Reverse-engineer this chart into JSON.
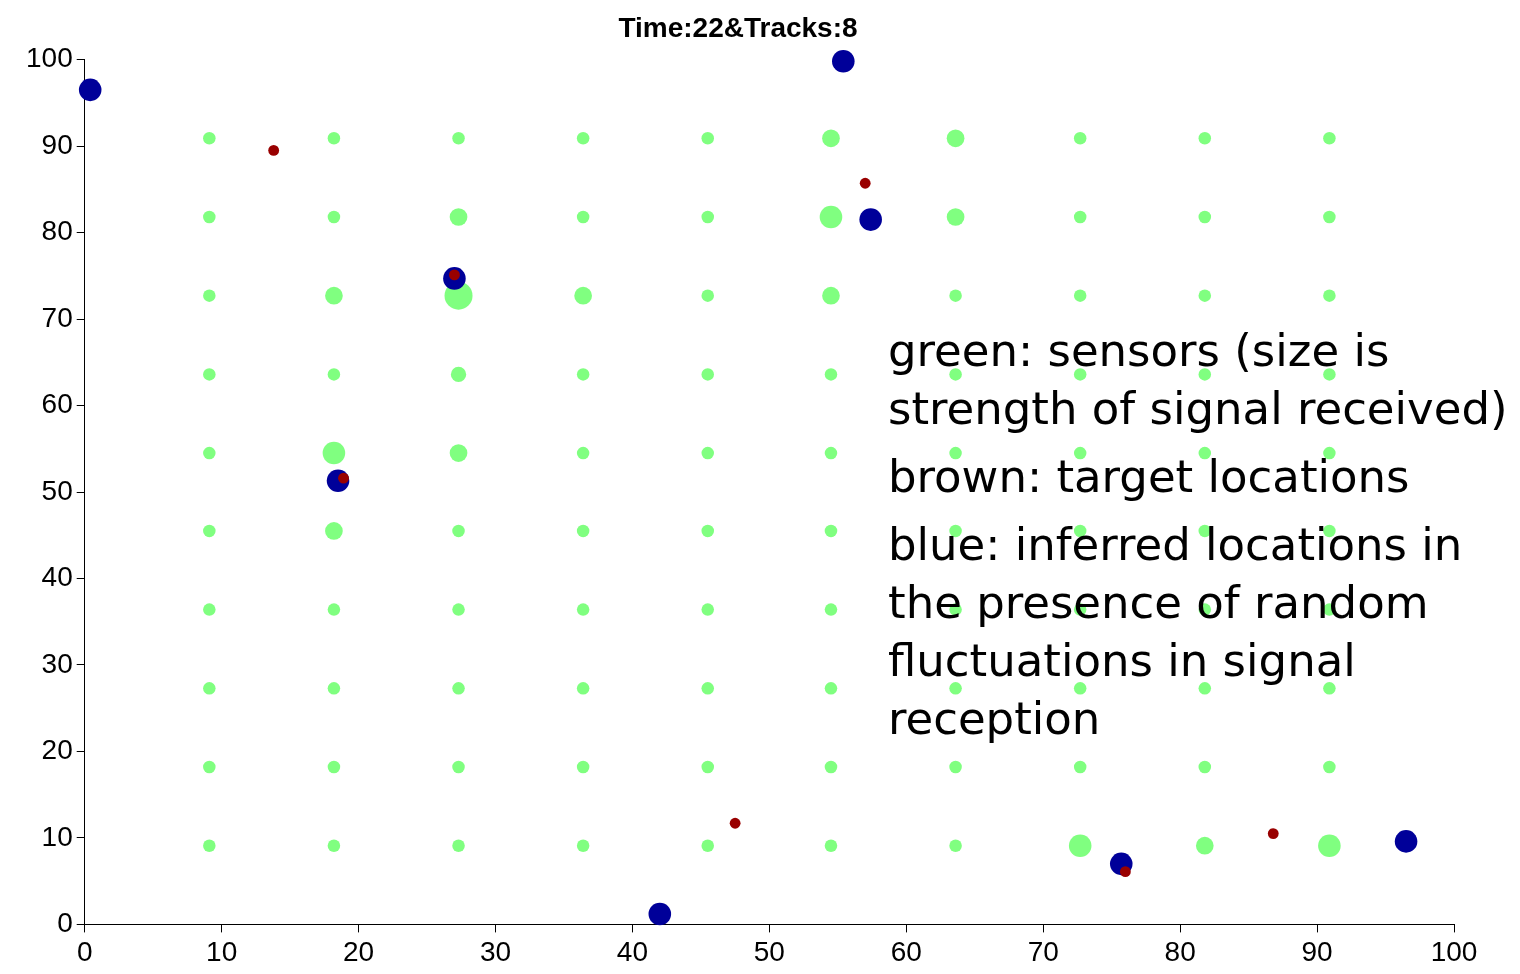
{
  "chart_data": {
    "type": "bubble",
    "title": "Time:22&Tracks:8",
    "series": [
      {
        "color": "#80ff80",
        "x": [
          9.1,
          18.2,
          27.3,
          36.4,
          45.5,
          54.5,
          63.6,
          72.7,
          81.8,
          90.9,
          9.1,
          18.2,
          27.3,
          36.4,
          45.5,
          54.5,
          63.6,
          72.7,
          81.8,
          90.9,
          9.1,
          18.2,
          27.3,
          36.4,
          45.5,
          54.5,
          63.6,
          72.7,
          81.8,
          90.9,
          9.1,
          18.2,
          27.3,
          36.4,
          45.5,
          54.5,
          63.6,
          72.7,
          81.8,
          90.9,
          9.1,
          18.2,
          27.3,
          36.4,
          45.5,
          54.5,
          63.6,
          72.7,
          81.8,
          90.9,
          9.1,
          18.2,
          27.3,
          36.4,
          45.5,
          54.5,
          63.6,
          72.7,
          81.8,
          90.9,
          9.1,
          18.2,
          27.3,
          36.4,
          45.5,
          54.5,
          63.6,
          72.7,
          81.8,
          90.9,
          9.1,
          18.2,
          27.3,
          36.4,
          45.5,
          54.5,
          63.6,
          72.7,
          81.8,
          90.9,
          9.1,
          18.2,
          27.3,
          36.4,
          45.5,
          54.5,
          63.6,
          72.7,
          81.8,
          90.9,
          9.1,
          18.2,
          27.3,
          36.4,
          45.5,
          54.5,
          63.6,
          72.7,
          81.8,
          90.9
        ],
        "values": [
          90.9,
          90.9,
          90.9,
          90.9,
          90.9,
          90.9,
          90.9,
          90.9,
          90.9,
          90.9,
          81.8,
          81.8,
          81.8,
          81.8,
          81.8,
          81.8,
          81.8,
          81.8,
          81.8,
          81.8,
          72.7,
          72.7,
          72.7,
          72.7,
          72.7,
          72.7,
          72.7,
          72.7,
          72.7,
          72.7,
          63.6,
          63.6,
          63.6,
          63.6,
          63.6,
          63.6,
          63.6,
          63.6,
          63.6,
          63.6,
          54.5,
          54.5,
          54.5,
          54.5,
          54.5,
          54.5,
          54.5,
          54.5,
          54.5,
          54.5,
          45.5,
          45.5,
          45.5,
          45.5,
          45.5,
          45.5,
          45.5,
          45.5,
          45.5,
          45.5,
          36.4,
          36.4,
          36.4,
          36.4,
          36.4,
          36.4,
          36.4,
          36.4,
          36.4,
          36.4,
          27.3,
          27.3,
          27.3,
          27.3,
          27.3,
          27.3,
          27.3,
          27.3,
          27.3,
          27.3,
          18.2,
          18.2,
          18.2,
          18.2,
          18.2,
          18.2,
          18.2,
          18.2,
          18.2,
          18.2,
          9.1,
          9.1,
          9.1,
          9.1,
          9.1,
          9.1,
          9.1,
          9.1,
          9.1,
          9.1
        ],
        "sizes": [
          0.2,
          0.2,
          0.2,
          0.2,
          0.2,
          0.4,
          0.4,
          0.2,
          0.2,
          0.2,
          0.2,
          0.2,
          0.4,
          0.2,
          0.2,
          0.65,
          0.4,
          0.2,
          0.2,
          0.2,
          0.2,
          0.4,
          1,
          0.4,
          0.2,
          0.4,
          0.2,
          0.2,
          0.2,
          0.2,
          0.2,
          0.2,
          0.3,
          0.2,
          0.2,
          0.2,
          0.2,
          0.2,
          0.2,
          0.2,
          0.2,
          0.65,
          0.4,
          0.2,
          0.2,
          0.2,
          0.2,
          0.2,
          0.2,
          0.2,
          0.2,
          0.4,
          0.2,
          0.2,
          0.2,
          0.2,
          0.2,
          0.2,
          0.2,
          0.2,
          0.2,
          0.2,
          0.2,
          0.2,
          0.2,
          0.2,
          0.2,
          0.2,
          0.2,
          0.2,
          0.2,
          0.2,
          0.2,
          0.2,
          0.2,
          0.2,
          0.2,
          0.2,
          0.2,
          0.2,
          0.2,
          0.2,
          0.2,
          0.2,
          0.2,
          0.2,
          0.2,
          0.2,
          0.2,
          0.2,
          0.2,
          0.2,
          0.2,
          0.2,
          0.2,
          0.2,
          0.2,
          0.65,
          0.4,
          0.65
        ]
      },
      {
        "color": "#000099",
        "x": [
          0.4,
          55.4,
          57.4,
          27.0,
          18.5,
          42.0,
          75.7,
          96.5
        ],
        "values": [
          96.5,
          99.8,
          81.5,
          74.7,
          51.3,
          1.2,
          7.0,
          9.6
        ],
        "sizes": [
          0.65,
          0.65,
          0.65,
          0.65,
          0.65,
          0.65,
          0.65,
          0.65
        ]
      },
      {
        "color": "#990000",
        "x": [
          13.8,
          57.0,
          27.0,
          18.9,
          47.5,
          86.8,
          76.0
        ],
        "values": [
          89.5,
          85.7,
          75.1,
          51.6,
          11.7,
          10.5,
          6.1
        ],
        "sizes": [
          0.15,
          0.15,
          0.15,
          0.15,
          0.15,
          0.15,
          0.15
        ]
      }
    ],
    "xlim": [
      0,
      100
    ],
    "xticks": [
      0,
      10,
      20,
      30,
      40,
      50,
      60,
      70,
      80,
      90,
      100
    ],
    "ylim": [
      0,
      100
    ],
    "yticks": [
      0,
      10,
      20,
      30,
      40,
      50,
      60,
      70,
      80,
      90,
      100
    ],
    "marker": "circle",
    "annotations": [
      "green: sensors (size is strength of signal received)",
      "brown: target locations",
      "blue: inferred locations in the presence of random fluctuations in signal reception"
    ]
  }
}
